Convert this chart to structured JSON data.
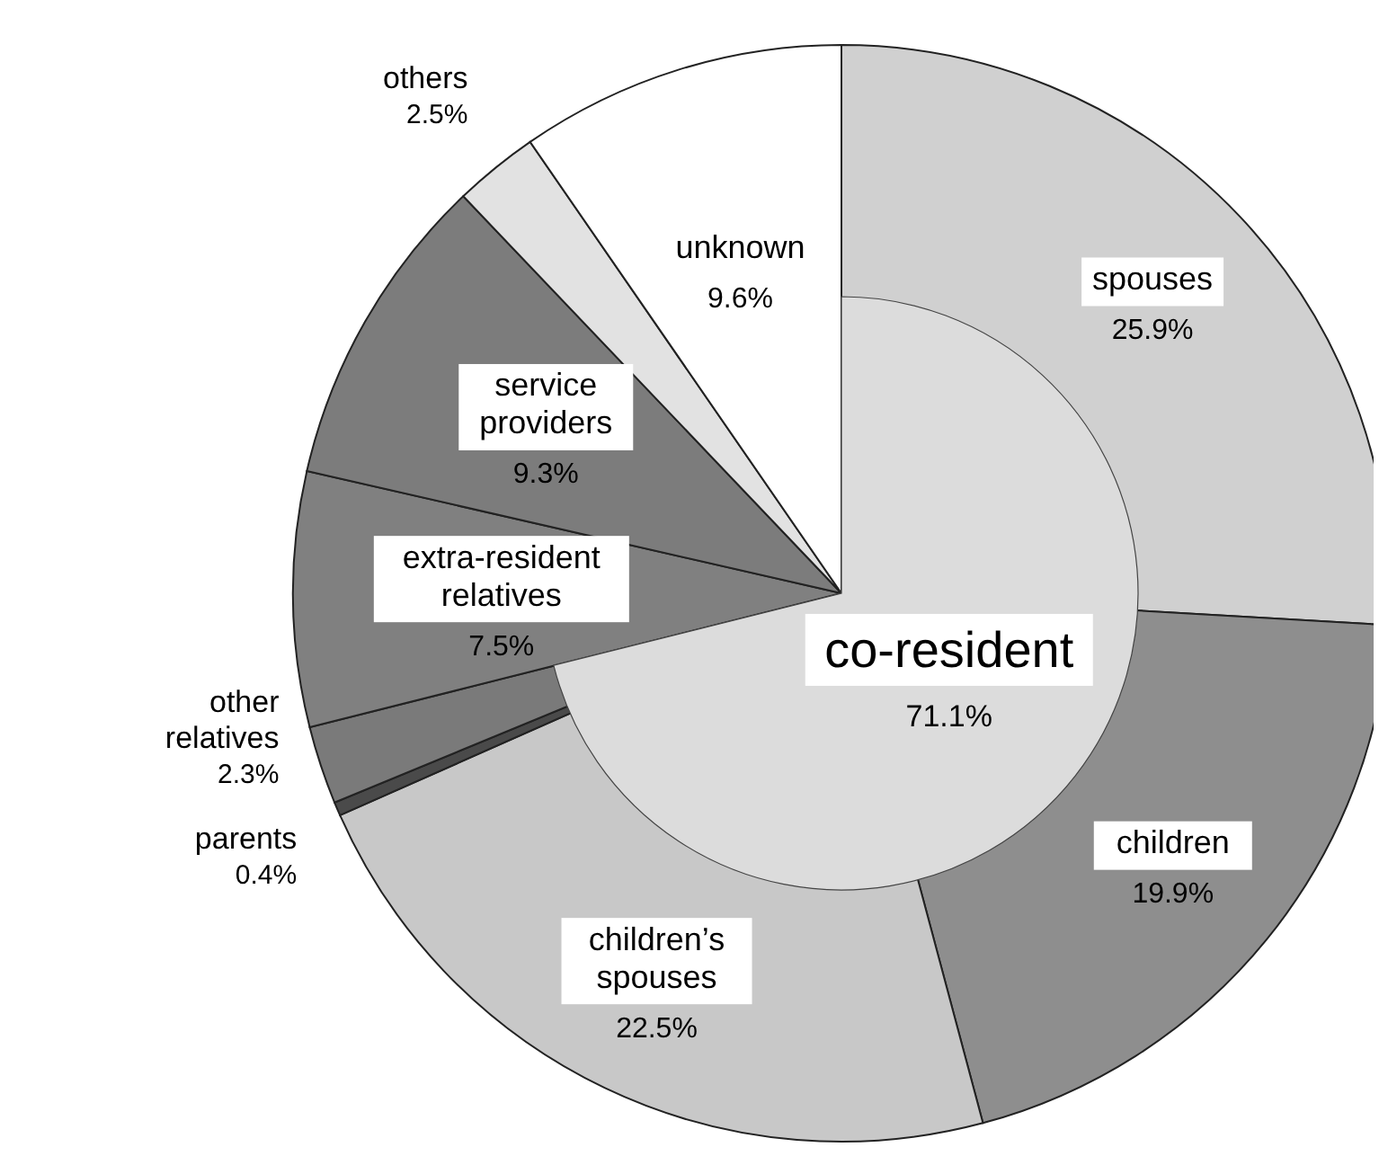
{
  "chart_data": {
    "type": "pie",
    "categories": [
      "spouses",
      "children",
      "children’s spouses",
      "parents",
      "other relatives",
      "extra-resident relatives",
      "service providers",
      "others",
      "unknown"
    ],
    "series": [
      {
        "values": [
          25.9,
          19.9,
          22.5,
          0.4,
          2.3,
          7.5,
          9.3,
          2.5,
          9.6
        ],
        "value_labels": [
          "25.9%",
          "19.9%",
          "22.5%",
          "0.4%",
          "2.3%",
          "7.5%",
          "9.3%",
          "2.5%",
          "9.6%"
        ],
        "colors": [
          "#d0d0d0",
          "#8e8e8e",
          "#c8c8c8",
          "#4a4a4a",
          "#7a7a7a",
          "#808080",
          "#7c7c7c",
          "#e2e2e2",
          "#ffffff"
        ]
      },
      {
        "name": "co-resident",
        "values": [
          71.1,
          null,
          null,
          null,
          null,
          null,
          null,
          null,
          null
        ],
        "value_labels": [
          "71.1%",
          null,
          null,
          null,
          null,
          null,
          null,
          null,
          null
        ],
        "color": "#dcdcdc"
      }
    ]
  }
}
